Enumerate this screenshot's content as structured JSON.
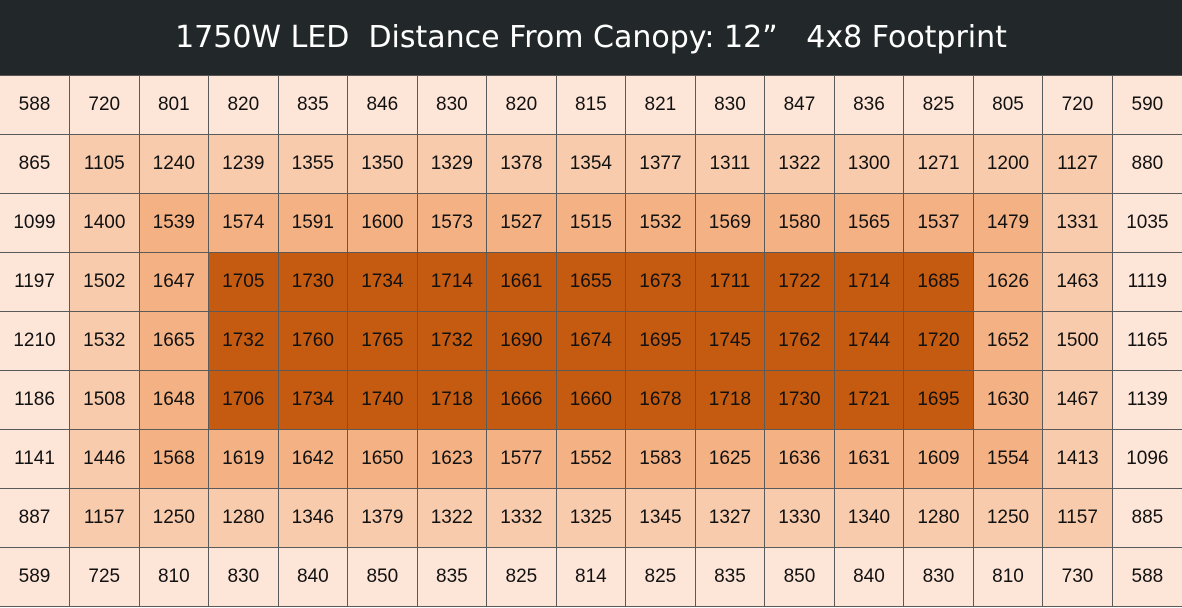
{
  "title": "1750W LED  Distance From Canopy: 12”   4x8 Footprint",
  "chart_data": {
    "type": "heatmap",
    "title": "1750W LED  Distance From Canopy: 12”   4x8 Footprint",
    "rows": [
      [
        588,
        720,
        801,
        820,
        835,
        846,
        830,
        820,
        815,
        821,
        830,
        847,
        836,
        825,
        805,
        720,
        590
      ],
      [
        865,
        1105,
        1240,
        1239,
        1355,
        1350,
        1329,
        1378,
        1354,
        1377,
        1311,
        1322,
        1300,
        1271,
        1200,
        1127,
        880
      ],
      [
        1099,
        1400,
        1539,
        1574,
        1591,
        1600,
        1573,
        1527,
        1515,
        1532,
        1569,
        1580,
        1565,
        1537,
        1479,
        1331,
        1035
      ],
      [
        1197,
        1502,
        1647,
        1705,
        1730,
        1734,
        1714,
        1661,
        1655,
        1673,
        1711,
        1722,
        1714,
        1685,
        1626,
        1463,
        1119
      ],
      [
        1210,
        1532,
        1665,
        1732,
        1760,
        1765,
        1732,
        1690,
        1674,
        1695,
        1745,
        1762,
        1744,
        1720,
        1652,
        1500,
        1165
      ],
      [
        1186,
        1508,
        1648,
        1706,
        1734,
        1740,
        1718,
        1666,
        1660,
        1678,
        1718,
        1730,
        1721,
        1695,
        1630,
        1467,
        1139
      ],
      [
        1141,
        1446,
        1568,
        1619,
        1642,
        1650,
        1623,
        1577,
        1552,
        1583,
        1625,
        1636,
        1631,
        1609,
        1554,
        1413,
        1096
      ],
      [
        887,
        1157,
        1250,
        1280,
        1346,
        1379,
        1322,
        1332,
        1325,
        1345,
        1327,
        1330,
        1340,
        1280,
        1250,
        1157,
        885
      ],
      [
        589,
        725,
        810,
        830,
        840,
        850,
        835,
        825,
        814,
        825,
        835,
        850,
        840,
        830,
        810,
        730,
        588
      ]
    ],
    "shading_levels": [
      [
        0,
        0,
        0,
        0,
        0,
        0,
        0,
        0,
        0,
        0,
        0,
        0,
        0,
        0,
        0,
        0,
        0
      ],
      [
        0,
        1,
        1,
        1,
        1,
        1,
        1,
        1,
        1,
        1,
        1,
        1,
        1,
        1,
        1,
        1,
        0
      ],
      [
        0,
        1,
        2,
        2,
        2,
        2,
        2,
        2,
        2,
        2,
        2,
        2,
        2,
        2,
        2,
        1,
        0
      ],
      [
        0,
        1,
        2,
        3,
        3,
        3,
        3,
        3,
        3,
        3,
        3,
        3,
        3,
        3,
        2,
        1,
        0
      ],
      [
        0,
        1,
        2,
        3,
        3,
        3,
        3,
        3,
        3,
        3,
        3,
        3,
        3,
        3,
        2,
        1,
        0
      ],
      [
        0,
        1,
        2,
        3,
        3,
        3,
        3,
        3,
        3,
        3,
        3,
        3,
        3,
        3,
        2,
        1,
        0
      ],
      [
        0,
        1,
        2,
        2,
        2,
        2,
        2,
        2,
        2,
        2,
        2,
        2,
        2,
        2,
        2,
        1,
        0
      ],
      [
        0,
        1,
        1,
        1,
        1,
        1,
        1,
        1,
        1,
        1,
        1,
        1,
        1,
        1,
        1,
        1,
        0
      ],
      [
        0,
        0,
        0,
        0,
        0,
        0,
        0,
        0,
        0,
        0,
        0,
        0,
        0,
        0,
        0,
        0,
        0
      ]
    ],
    "level_colors": [
      "#fde5d8",
      "#f8cbad",
      "#f4b183",
      "#c55a11"
    ]
  }
}
